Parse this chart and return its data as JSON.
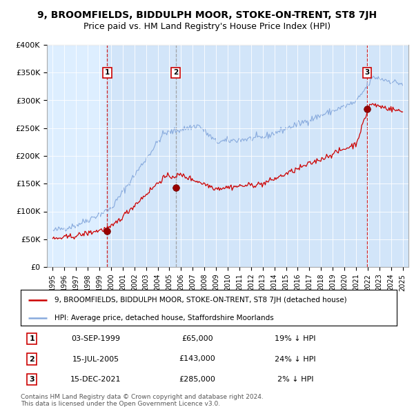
{
  "title": "9, BROOMFIELDS, BIDDULPH MOOR, STOKE-ON-TRENT, ST8 7JH",
  "subtitle": "Price paid vs. HM Land Registry's House Price Index (HPI)",
  "sales": [
    {
      "date_num": 1999.67,
      "price": 65000,
      "label": "1",
      "date_str": "03-SEP-1999",
      "pct": "19% ↓ HPI"
    },
    {
      "date_num": 2005.54,
      "price": 143000,
      "label": "2",
      "date_str": "15-JUL-2005",
      "pct": "24% ↓ HPI"
    },
    {
      "date_num": 2021.96,
      "price": 285000,
      "label": "3",
      "date_str": "15-DEC-2021",
      "pct": "2% ↓ HPI"
    }
  ],
  "legend_property": "9, BROOMFIELDS, BIDDULPH MOOR, STOKE-ON-TRENT, ST8 7JH (detached house)",
  "legend_hpi": "HPI: Average price, detached house, Staffordshire Moorlands",
  "property_color": "#cc0000",
  "hpi_color": "#88aadd",
  "band_color": "#ddeeff",
  "footer": "Contains HM Land Registry data © Crown copyright and database right 2024.\nThis data is licensed under the Open Government Licence v3.0.",
  "ylim": [
    0,
    400000
  ],
  "yticks": [
    0,
    50000,
    100000,
    150000,
    200000,
    250000,
    300000,
    350000,
    400000
  ],
  "ytick_labels": [
    "£0",
    "£50K",
    "£100K",
    "£150K",
    "£200K",
    "£250K",
    "£300K",
    "£350K",
    "£400K"
  ],
  "xlim_start": 1994.5,
  "xlim_end": 2025.5,
  "bg_color": "#ddeeff",
  "chart_bg": "#ddeeff",
  "white": "#ffffff"
}
